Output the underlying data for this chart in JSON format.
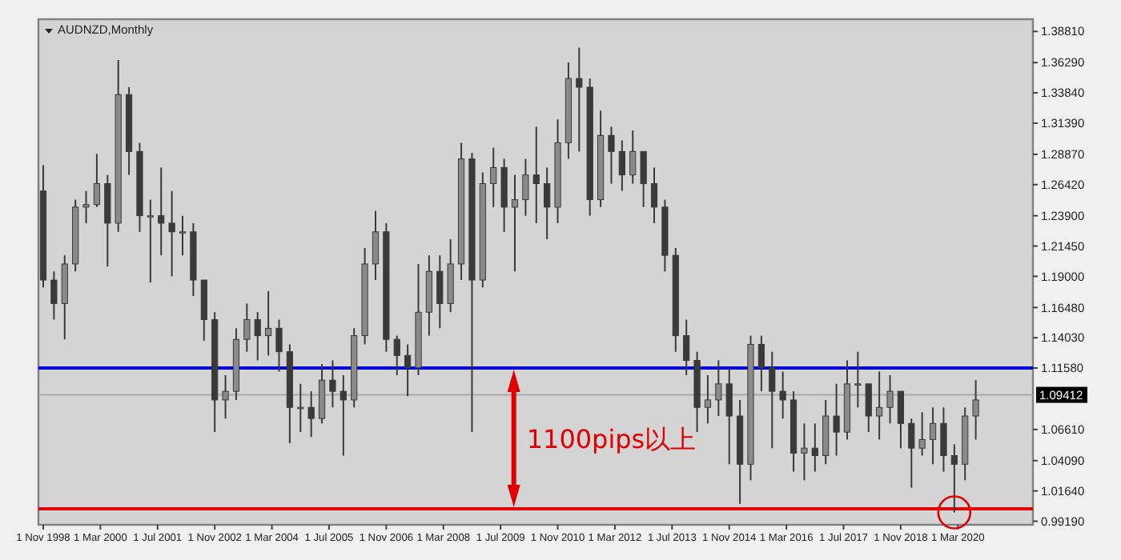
{
  "chart_data": {
    "type": "candlestick",
    "title": "AUDNZD,Monthly",
    "color": "#3a3a3a",
    "x": [
      "1998-11",
      "1999-02",
      "1999-05",
      "1999-08",
      "1999-11",
      "2000-02",
      "2000-05",
      "2000-08",
      "2000-11",
      "2001-02",
      "2001-05",
      "2001-08",
      "2001-11",
      "2002-02",
      "2002-05",
      "2002-08",
      "2002-11",
      "2003-02",
      "2003-05",
      "2003-08",
      "2003-11",
      "2004-02",
      "2004-05",
      "2004-08",
      "2004-11",
      "2005-02",
      "2005-05",
      "2005-08",
      "2005-11",
      "2006-02",
      "2006-05",
      "2006-08",
      "2006-11",
      "2007-02",
      "2007-05",
      "2007-08",
      "2007-11",
      "2008-02",
      "2008-05",
      "2008-08",
      "2008-11",
      "2009-02",
      "2009-05",
      "2009-08",
      "2009-11",
      "2010-02",
      "2010-05",
      "2010-08",
      "2010-11",
      "2011-02",
      "2011-05",
      "2011-08",
      "2011-11",
      "2012-02",
      "2012-05",
      "2012-08",
      "2012-11",
      "2013-02",
      "2013-05",
      "2013-08",
      "2013-11",
      "2014-02",
      "2014-05",
      "2014-08",
      "2014-11",
      "2015-02",
      "2015-05",
      "2015-08",
      "2015-11",
      "2016-02",
      "2016-05",
      "2016-08",
      "2016-11",
      "2017-02",
      "2017-05",
      "2017-08",
      "2017-11",
      "2018-02",
      "2018-05",
      "2018-08",
      "2018-11",
      "2019-02",
      "2019-05",
      "2019-08",
      "2019-11",
      "2020-02",
      "2020-05",
      "2020-08"
    ],
    "ohlc": [
      [
        1.259,
        1.28,
        1.181,
        1.187
      ],
      [
        1.187,
        1.194,
        1.155,
        1.168
      ],
      [
        1.168,
        1.207,
        1.139,
        1.2
      ],
      [
        1.2,
        1.252,
        1.194,
        1.246
      ],
      [
        1.246,
        1.259,
        1.233,
        1.248
      ],
      [
        1.248,
        1.289,
        1.246,
        1.265
      ],
      [
        1.265,
        1.272,
        1.198,
        1.233
      ],
      [
        1.233,
        1.365,
        1.226,
        1.337
      ],
      [
        1.337,
        1.343,
        1.272,
        1.291
      ],
      [
        1.291,
        1.298,
        1.226,
        1.239
      ],
      [
        1.239,
        1.252,
        1.185,
        1.239
      ],
      [
        1.239,
        1.278,
        1.207,
        1.233
      ],
      [
        1.233,
        1.259,
        1.19,
        1.226
      ],
      [
        1.226,
        1.239,
        1.207,
        1.226
      ],
      [
        1.226,
        1.233,
        1.174,
        1.187
      ],
      [
        1.187,
        1.187,
        1.138,
        1.155
      ],
      [
        1.155,
        1.161,
        1.064,
        1.09
      ],
      [
        1.09,
        1.11,
        1.075,
        1.097
      ],
      [
        1.097,
        1.148,
        1.09,
        1.139
      ],
      [
        1.139,
        1.168,
        1.129,
        1.155
      ],
      [
        1.155,
        1.161,
        1.122,
        1.142
      ],
      [
        1.142,
        1.178,
        1.126,
        1.148
      ],
      [
        1.148,
        1.155,
        1.113,
        1.129
      ],
      [
        1.129,
        1.135,
        1.055,
        1.084
      ],
      [
        1.084,
        1.103,
        1.064,
        1.084
      ],
      [
        1.084,
        1.097,
        1.06,
        1.075
      ],
      [
        1.075,
        1.119,
        1.071,
        1.106
      ],
      [
        1.106,
        1.122,
        1.084,
        1.097
      ],
      [
        1.097,
        1.11,
        1.045,
        1.09
      ],
      [
        1.09,
        1.148,
        1.084,
        1.142
      ],
      [
        1.142,
        1.213,
        1.135,
        1.2
      ],
      [
        1.2,
        1.243,
        1.187,
        1.226
      ],
      [
        1.226,
        1.233,
        1.129,
        1.139
      ],
      [
        1.139,
        1.142,
        1.11,
        1.126
      ],
      [
        1.126,
        1.135,
        1.093,
        1.116
      ],
      [
        1.116,
        1.2,
        1.11,
        1.161
      ],
      [
        1.161,
        1.207,
        1.142,
        1.194
      ],
      [
        1.194,
        1.207,
        1.148,
        1.168
      ],
      [
        1.168,
        1.22,
        1.161,
        1.2
      ],
      [
        1.2,
        1.298,
        1.187,
        1.285
      ],
      [
        1.285,
        1.29,
        1.064,
        1.187
      ],
      [
        1.187,
        1.274,
        1.181,
        1.265
      ],
      [
        1.265,
        1.294,
        1.246,
        1.278
      ],
      [
        1.278,
        1.285,
        1.226,
        1.246
      ],
      [
        1.246,
        1.272,
        1.194,
        1.252
      ],
      [
        1.252,
        1.285,
        1.239,
        1.272
      ],
      [
        1.272,
        1.311,
        1.233,
        1.265
      ],
      [
        1.265,
        1.278,
        1.22,
        1.246
      ],
      [
        1.246,
        1.317,
        1.233,
        1.298
      ],
      [
        1.298,
        1.363,
        1.285,
        1.35
      ],
      [
        1.35,
        1.375,
        1.291,
        1.343
      ],
      [
        1.343,
        1.35,
        1.239,
        1.252
      ],
      [
        1.252,
        1.324,
        1.246,
        1.304
      ],
      [
        1.304,
        1.311,
        1.265,
        1.291
      ],
      [
        1.291,
        1.3,
        1.259,
        1.272
      ],
      [
        1.272,
        1.308,
        1.265,
        1.291
      ],
      [
        1.291,
        1.291,
        1.246,
        1.265
      ],
      [
        1.265,
        1.278,
        1.233,
        1.246
      ],
      [
        1.246,
        1.252,
        1.194,
        1.207
      ],
      [
        1.207,
        1.213,
        1.129,
        1.142
      ],
      [
        1.142,
        1.155,
        1.11,
        1.122
      ],
      [
        1.122,
        1.129,
        1.064,
        1.084
      ],
      [
        1.084,
        1.11,
        1.071,
        1.09
      ],
      [
        1.09,
        1.122,
        1.077,
        1.103
      ],
      [
        1.103,
        1.116,
        1.038,
        1.077
      ],
      [
        1.077,
        1.09,
        1.006,
        1.038
      ],
      [
        1.038,
        1.142,
        1.025,
        1.135
      ],
      [
        1.135,
        1.142,
        1.097,
        1.116
      ],
      [
        1.116,
        1.129,
        1.051,
        1.097
      ],
      [
        1.097,
        1.113,
        1.075,
        1.09
      ],
      [
        1.09,
        1.097,
        1.032,
        1.047
      ],
      [
        1.047,
        1.071,
        1.025,
        1.051
      ],
      [
        1.051,
        1.071,
        1.032,
        1.045
      ],
      [
        1.045,
        1.09,
        1.038,
        1.077
      ],
      [
        1.077,
        1.103,
        1.045,
        1.064
      ],
      [
        1.064,
        1.122,
        1.058,
        1.103
      ],
      [
        1.103,
        1.129,
        1.084,
        1.103
      ],
      [
        1.103,
        1.103,
        1.064,
        1.077
      ],
      [
        1.077,
        1.113,
        1.058,
        1.084
      ],
      [
        1.084,
        1.11,
        1.071,
        1.097
      ],
      [
        1.097,
        1.097,
        1.051,
        1.071
      ],
      [
        1.071,
        1.075,
        1.019,
        1.051
      ],
      [
        1.051,
        1.08,
        1.045,
        1.058
      ],
      [
        1.058,
        1.084,
        1.038,
        1.071
      ],
      [
        1.071,
        1.084,
        1.032,
        1.045
      ],
      [
        1.045,
        1.054,
        0.999,
        1.038
      ],
      [
        1.038,
        1.084,
        1.025,
        1.077
      ],
      [
        1.077,
        1.106,
        1.058,
        1.09
      ]
    ],
    "xlim": [
      "1998-09-21",
      "2021-12-01"
    ],
    "xticks": [
      {
        "value": "1998-11-01",
        "label": "1 Nov 1998"
      },
      {
        "value": "2000-03-01",
        "label": "1 Mar 2000"
      },
      {
        "value": "2001-07-01",
        "label": "1 Jul 2001"
      },
      {
        "value": "2002-11-01",
        "label": "1 Nov 2002"
      },
      {
        "value": "2004-03-01",
        "label": "1 Mar 2004"
      },
      {
        "value": "2005-07-01",
        "label": "1 Jul 2005"
      },
      {
        "value": "2006-11-01",
        "label": "1 Nov 2006"
      },
      {
        "value": "2008-03-01",
        "label": "1 Mar 2008"
      },
      {
        "value": "2009-07-01",
        "label": "1 Jul 2009"
      },
      {
        "value": "2010-11-01",
        "label": "1 Nov 2010"
      },
      {
        "value": "2012-03-01",
        "label": "1 Mar 2012"
      },
      {
        "value": "2013-07-01",
        "label": "1 Jul 2013"
      },
      {
        "value": "2014-11-01",
        "label": "1 Nov 2014"
      },
      {
        "value": "2016-03-01",
        "label": "1 Mar 2016"
      },
      {
        "value": "2017-07-01",
        "label": "1 Jul 2017"
      },
      {
        "value": "2018-11-01",
        "label": "1 Nov 2018"
      },
      {
        "value": "2020-03-01",
        "label": "1 Mar 2020"
      }
    ],
    "ylim": [
      0.989,
      1.398
    ],
    "yticks": [
      {
        "value": 1.3881,
        "label": "1.38810"
      },
      {
        "value": 1.3629,
        "label": "1.36290"
      },
      {
        "value": 1.3384,
        "label": "1.33840"
      },
      {
        "value": 1.3139,
        "label": "1.31390"
      },
      {
        "value": 1.2887,
        "label": "1.28870"
      },
      {
        "value": 1.2642,
        "label": "1.26420"
      },
      {
        "value": 1.239,
        "label": "1.23900"
      },
      {
        "value": 1.2145,
        "label": "1.21450"
      },
      {
        "value": 1.19,
        "label": "1.19000"
      },
      {
        "value": 1.1648,
        "label": "1.16480"
      },
      {
        "value": 1.1403,
        "label": "1.14030"
      },
      {
        "value": 1.1158,
        "label": "1.11580"
      },
      {
        "value": 1.0661,
        "label": "1.06610"
      },
      {
        "value": 1.0409,
        "label": "1.04090"
      },
      {
        "value": 1.0164,
        "label": "1.01640"
      },
      {
        "value": 0.9919,
        "label": "0.99190"
      }
    ],
    "ref_lines": [
      {
        "axis": "y",
        "value": 1.1158,
        "color": "#0000dd"
      },
      {
        "axis": "y",
        "value": 1.002,
        "color": "#e00000"
      },
      {
        "axis": "y",
        "value": 1.09412,
        "label": "1.09412",
        "color": "#a8a8a8"
      }
    ],
    "annotations": [
      "1100pips以上"
    ],
    "grid": false,
    "legend": false
  }
}
